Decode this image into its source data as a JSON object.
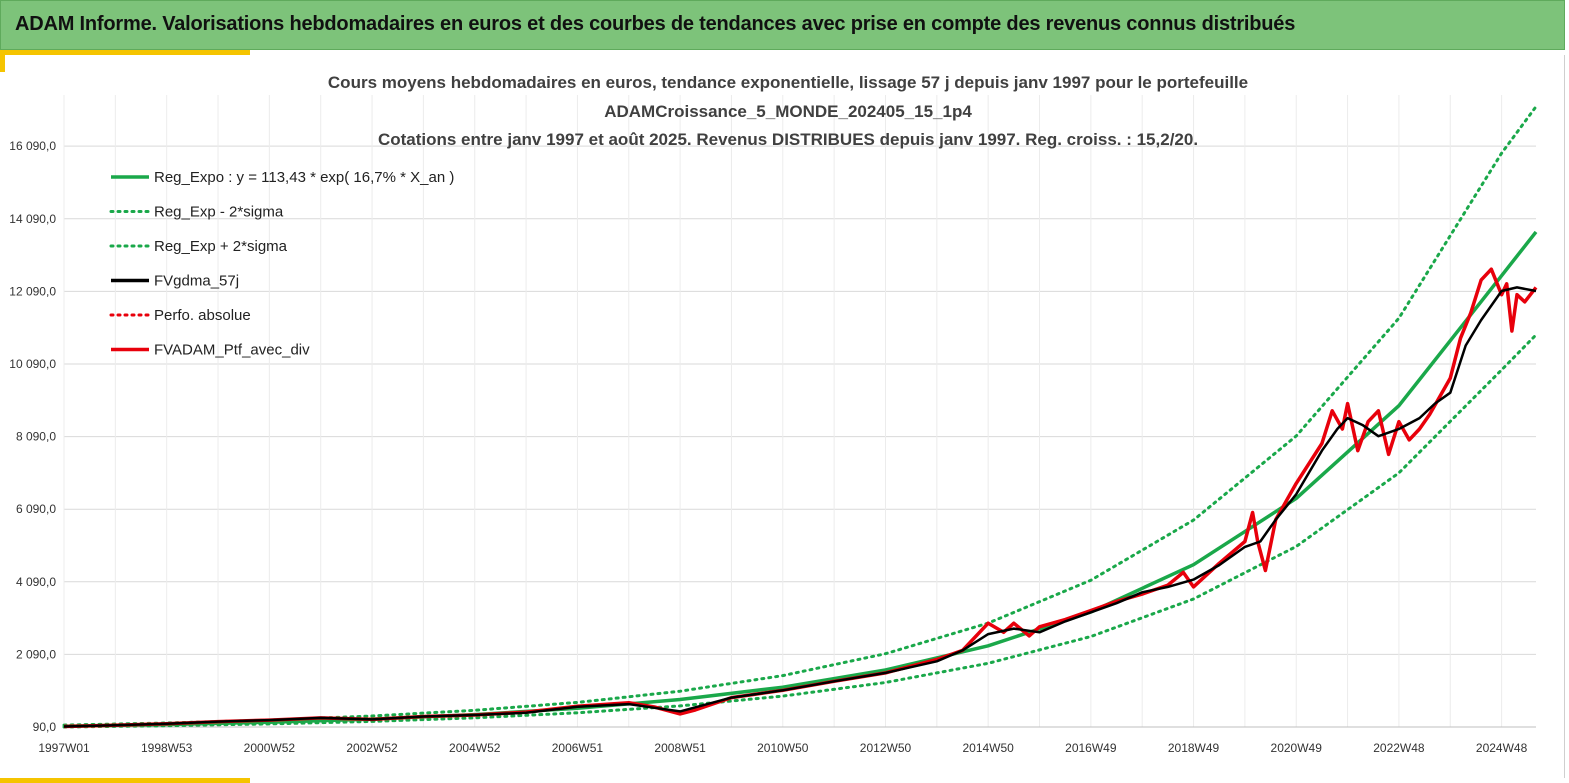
{
  "header": {
    "title": "ADAM Informe. Valorisations hebdomadaires en euros et des courbes de tendances avec prise en compte des revenus connus distribués"
  },
  "colors": {
    "banner": "#7dc37a",
    "accent": "#f5c400",
    "reg_green": "#1aa84a",
    "real_red": "#e8000b",
    "smooth_black": "#000000",
    "grid": "#d9d9d9"
  },
  "chart_data": {
    "type": "line",
    "title_lines": [
      "Cours moyens hebdomadaires  en euros, tendance exponentielle, lissage 57 j depuis janv 1997 pour le portefeuille",
      "ADAMCroissance_5_MONDE_202405_15_1p4",
      "Cotations entre janv 1997 et août 2025. Revenus DISTRIBUES depuis janv 1997. Reg. croiss. : 15,2/20."
    ],
    "x_ticks": [
      "1997W01",
      "1998W53",
      "2000W52",
      "2002W52",
      "2004W52",
      "2006W51",
      "2008W51",
      "2010W50",
      "2012W50",
      "2014W50",
      "2016W49",
      "2018W49",
      "2020W49",
      "2022W48",
      "2024W48"
    ],
    "x_tick_years": [
      1997.0,
      1999.0,
      2001.0,
      2003.0,
      2005.0,
      2007.0,
      2009.0,
      2011.0,
      2013.0,
      2015.0,
      2017.0,
      2019.0,
      2021.0,
      2023.0,
      2025.0
    ],
    "x_range": [
      1997.0,
      2025.67
    ],
    "y_ticks": [
      "90,0",
      "2 090,0",
      "4 090,0",
      "6 090,0",
      "8 090,0",
      "10 090,0",
      "12 090,0",
      "14 090,0",
      "16 090,0"
    ],
    "y_tick_values": [
      90,
      2090,
      4090,
      6090,
      8090,
      10090,
      12090,
      14090,
      16090
    ],
    "ylim": [
      90,
      17500
    ],
    "grid": true,
    "legend_position": "top-left",
    "legend": [
      {
        "label": "Reg_Expo : y = 113,43 * exp( 16,7% *  X_an )",
        "style": "solid",
        "color": "#1aa84a"
      },
      {
        "label": "Reg_Exp - 2*sigma",
        "style": "dotted",
        "color": "#1aa84a"
      },
      {
        "label": "Reg_Exp + 2*sigma",
        "style": "dotted",
        "color": "#1aa84a"
      },
      {
        "label": "FVgdma_57j",
        "style": "solid",
        "color": "#000000"
      },
      {
        "label": "Perfo. absolue",
        "style": "dotted",
        "color": "#e8000b"
      },
      {
        "label": "FVADAM_Ptf_avec_div",
        "style": "solid",
        "color": "#e8000b"
      }
    ],
    "series": [
      {
        "name": "Reg_Expo : y = 113,43 * exp( 16,7% *  X_an )",
        "x": [
          1997,
          1999,
          2001,
          2003,
          2005,
          2007,
          2009,
          2011,
          2013,
          2015,
          2017,
          2019,
          2021,
          2023,
          2025,
          2025.67
        ],
        "values": [
          113,
          158,
          221,
          309,
          432,
          606,
          848,
          1187,
          1661,
          2326,
          3257,
          4561,
          6386,
          8942,
          12521,
          13730
        ]
      },
      {
        "name": "Reg_Exp - 2*sigma",
        "x": [
          1997,
          1999,
          2001,
          2003,
          2005,
          2007,
          2009,
          2011,
          2013,
          2015,
          2017,
          2019,
          2021,
          2023,
          2025,
          2025.67
        ],
        "values": [
          90,
          125,
          175,
          245,
          343,
          480,
          672,
          941,
          1317,
          1844,
          2582,
          3616,
          5063,
          7090,
          9928,
          10890
        ]
      },
      {
        "name": "Reg_Exp + 2*sigma",
        "x": [
          1997,
          1999,
          2001,
          2003,
          2005,
          2007,
          2009,
          2011,
          2013,
          2015,
          2017,
          2019,
          2021,
          2023,
          2025,
          2025.67
        ],
        "values": [
          143,
          200,
          280,
          392,
          549,
          768,
          1076,
          1506,
          2109,
          2953,
          4135,
          5790,
          8107,
          11352,
          15896,
          17180
        ]
      },
      {
        "name": "FVgdma_57j",
        "x": [
          1997,
          1998,
          1999,
          2000,
          2001,
          2002,
          2003,
          2004,
          2005,
          2006,
          2007,
          2008,
          2008.5,
          2009,
          2010,
          2011,
          2012,
          2013,
          2014,
          2014.5,
          2015,
          2015.5,
          2016,
          2016.5,
          2017,
          2017.5,
          2018,
          2018.5,
          2019,
          2019.5,
          2020,
          2020.3,
          2020.6,
          2021,
          2021.5,
          2021.8,
          2022,
          2022.3,
          2022.6,
          2023,
          2023.4,
          2023.7,
          2024,
          2024.3,
          2024.6,
          2025,
          2025.3,
          2025.67
        ],
        "values": [
          105,
          140,
          180,
          240,
          280,
          340,
          300,
          380,
          420,
          480,
          650,
          720,
          620,
          520,
          900,
          1100,
          1350,
          1580,
          1900,
          2200,
          2650,
          2800,
          2700,
          3000,
          3250,
          3500,
          3800,
          3950,
          4150,
          4550,
          5050,
          5200,
          5800,
          6500,
          7700,
          8300,
          8600,
          8400,
          8100,
          8300,
          8600,
          9000,
          9300,
          10600,
          11300,
          12100,
          12200,
          12100
        ]
      },
      {
        "name": "FVADAM_Ptf_avec_div",
        "x": [
          1997,
          1998,
          1999,
          2000,
          2001,
          2002,
          2003,
          2004,
          2005,
          2006,
          2007,
          2008,
          2008.5,
          2009,
          2009.3,
          2010,
          2011,
          2012,
          2013,
          2014,
          2014.5,
          2015,
          2015.3,
          2015.5,
          2015.8,
          2016,
          2016.5,
          2017,
          2017.5,
          2018,
          2018.5,
          2018.8,
          2019,
          2019.5,
          2020,
          2020.15,
          2020.25,
          2020.4,
          2020.6,
          2021,
          2021.5,
          2021.7,
          2021.9,
          2022,
          2022.2,
          2022.4,
          2022.6,
          2022.8,
          2023,
          2023.2,
          2023.4,
          2023.6,
          2023.8,
          2024,
          2024.2,
          2024.4,
          2024.6,
          2024.8,
          2025,
          2025.1,
          2025.2,
          2025.3,
          2025.45,
          2025.67
        ],
        "values": [
          105,
          140,
          180,
          240,
          280,
          340,
          300,
          380,
          420,
          500,
          660,
          760,
          640,
          450,
          560,
          900,
          1100,
          1350,
          1580,
          1950,
          2200,
          2950,
          2700,
          2950,
          2600,
          2850,
          3050,
          3300,
          3550,
          3750,
          4000,
          4350,
          3950,
          4600,
          5200,
          6000,
          5200,
          4400,
          5800,
          6800,
          7900,
          8800,
          8300,
          9000,
          7700,
          8500,
          8800,
          7600,
          8500,
          8000,
          8300,
          8700,
          9200,
          9700,
          10800,
          11500,
          12400,
          12700,
          12000,
          12300,
          11000,
          12000,
          11800,
          12200
        ]
      }
    ]
  }
}
